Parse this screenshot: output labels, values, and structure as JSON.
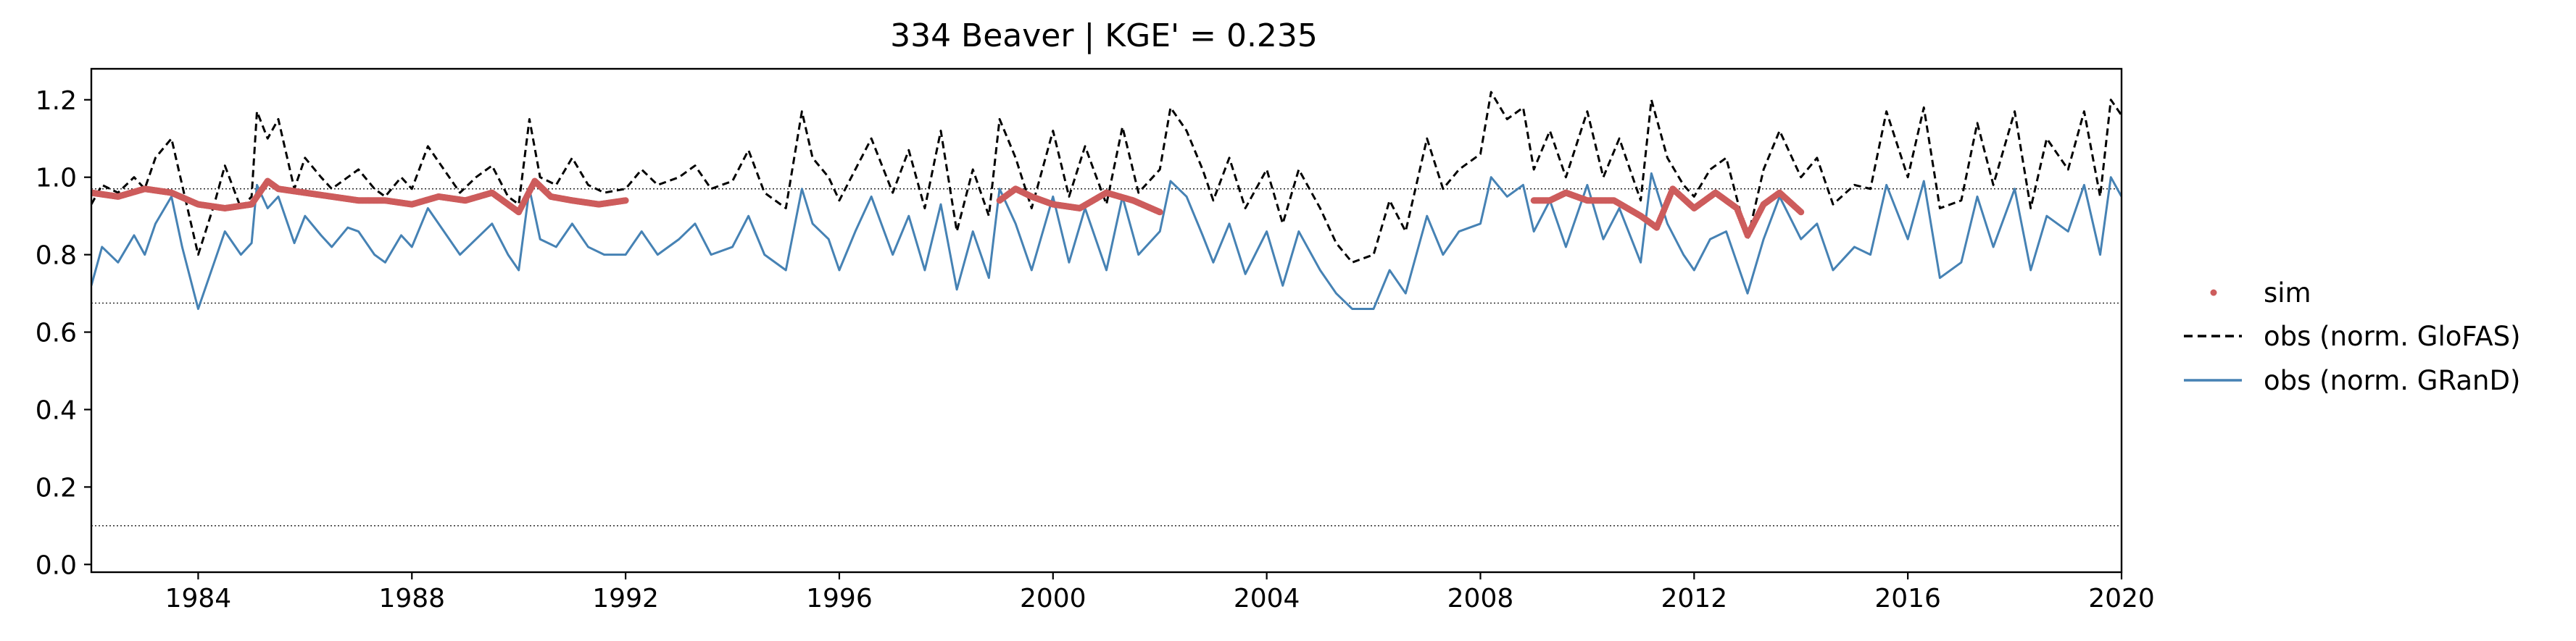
{
  "chart_data": {
    "type": "line",
    "title": "334  Beaver | KGE' = 0.235",
    "xlabel": "",
    "ylabel": "",
    "xlim": [
      1982.0,
      2020.0
    ],
    "ylim": [
      -0.02,
      1.28
    ],
    "x_ticks": [
      1984,
      1988,
      1992,
      1996,
      2000,
      2004,
      2008,
      2012,
      2016,
      2020
    ],
    "x_tick_labels": [
      "1984",
      "1988",
      "1992",
      "1996",
      "2000",
      "2004",
      "2008",
      "2012",
      "2016",
      "2020"
    ],
    "y_ticks": [
      0.0,
      0.2,
      0.4,
      0.6,
      0.8,
      1.0,
      1.2
    ],
    "y_tick_labels": [
      "0.0",
      "0.2",
      "0.4",
      "0.6",
      "0.8",
      "1.0",
      "1.2"
    ],
    "reference_lines": [
      0.97,
      0.675,
      0.1
    ],
    "grid": false,
    "legend_position": "right, outside plot",
    "legend": [
      {
        "label": "sim",
        "style": "dot",
        "color": "#cd5c5c"
      },
      {
        "label": "obs (norm. GloFAS)",
        "style": "dashed",
        "color": "#000000"
      },
      {
        "label": "obs (norm. GRanD)",
        "style": "solid",
        "color": "#4682b4"
      }
    ],
    "series": [
      {
        "name": "obs (norm. GloFAS)",
        "color": "#000000",
        "style": "dashed",
        "x": [
          1982.0,
          1982.2,
          1982.5,
          1982.8,
          1983.0,
          1983.2,
          1983.5,
          1983.7,
          1984.0,
          1984.3,
          1984.5,
          1984.8,
          1985.0,
          1985.1,
          1985.3,
          1985.5,
          1985.8,
          1986.0,
          1986.3,
          1986.5,
          1986.8,
          1987.0,
          1987.3,
          1987.5,
          1987.8,
          1988.0,
          1988.3,
          1988.6,
          1988.9,
          1989.2,
          1989.5,
          1989.8,
          1990.0,
          1990.2,
          1990.4,
          1990.7,
          1991.0,
          1991.3,
          1991.6,
          1992.0,
          1992.3,
          1992.6,
          1993.0,
          1993.3,
          1993.6,
          1994.0,
          1994.3,
          1994.6,
          1995.0,
          1995.3,
          1995.5,
          1995.8,
          1996.0,
          1996.3,
          1996.6,
          1997.0,
          1997.3,
          1997.6,
          1997.9,
          1998.2,
          1998.5,
          1998.8,
          1999.0,
          1999.3,
          1999.6,
          2000.0,
          2000.3,
          2000.6,
          2001.0,
          2001.3,
          2001.6,
          2002.0,
          2002.2,
          2002.5,
          2002.8,
          2003.0,
          2003.3,
          2003.6,
          2004.0,
          2004.3,
          2004.6,
          2005.0,
          2005.3,
          2005.6,
          2006.0,
          2006.3,
          2006.6,
          2007.0,
          2007.3,
          2007.6,
          2008.0,
          2008.2,
          2008.5,
          2008.8,
          2009.0,
          2009.3,
          2009.6,
          2010.0,
          2010.3,
          2010.6,
          2011.0,
          2011.2,
          2011.5,
          2011.8,
          2012.0,
          2012.3,
          2012.6,
          2013.0,
          2013.3,
          2013.6,
          2014.0,
          2014.3,
          2014.6,
          2015.0,
          2015.3,
          2015.6,
          2016.0,
          2016.3,
          2016.6,
          2017.0,
          2017.3,
          2017.6,
          2018.0,
          2018.3,
          2018.6,
          2019.0,
          2019.3,
          2019.6,
          2019.8,
          2020.0
        ],
        "values": [
          0.93,
          0.98,
          0.96,
          1.0,
          0.97,
          1.05,
          1.1,
          0.98,
          0.8,
          0.93,
          1.03,
          0.92,
          0.95,
          1.17,
          1.1,
          1.15,
          0.97,
          1.05,
          1.0,
          0.97,
          1.0,
          1.02,
          0.97,
          0.95,
          1.0,
          0.97,
          1.08,
          1.02,
          0.96,
          1.0,
          1.03,
          0.95,
          0.93,
          1.15,
          1.0,
          0.98,
          1.05,
          0.98,
          0.96,
          0.97,
          1.02,
          0.98,
          1.0,
          1.03,
          0.97,
          0.99,
          1.07,
          0.96,
          0.92,
          1.17,
          1.05,
          1.0,
          0.94,
          1.02,
          1.1,
          0.96,
          1.07,
          0.92,
          1.12,
          0.86,
          1.02,
          0.9,
          1.15,
          1.05,
          0.92,
          1.12,
          0.95,
          1.08,
          0.93,
          1.13,
          0.96,
          1.02,
          1.18,
          1.12,
          1.02,
          0.94,
          1.05,
          0.92,
          1.02,
          0.88,
          1.02,
          0.92,
          0.83,
          0.78,
          0.8,
          0.94,
          0.86,
          1.1,
          0.97,
          1.02,
          1.06,
          1.22,
          1.15,
          1.18,
          1.02,
          1.12,
          1.0,
          1.17,
          1.0,
          1.1,
          0.94,
          1.2,
          1.05,
          0.98,
          0.95,
          1.02,
          1.05,
          0.84,
          1.02,
          1.12,
          1.0,
          1.05,
          0.93,
          0.98,
          0.97,
          1.17,
          1.0,
          1.18,
          0.92,
          0.94,
          1.14,
          0.98,
          1.17,
          0.92,
          1.1,
          1.02,
          1.17,
          0.95,
          1.2,
          1.16
        ]
      },
      {
        "name": "obs (norm. GRanD)",
        "color": "#4682b4",
        "style": "solid",
        "x": [
          1982.0,
          1982.2,
          1982.5,
          1982.8,
          1983.0,
          1983.2,
          1983.5,
          1983.7,
          1984.0,
          1984.3,
          1984.5,
          1984.8,
          1985.0,
          1985.1,
          1985.3,
          1985.5,
          1985.8,
          1986.0,
          1986.3,
          1986.5,
          1986.8,
          1987.0,
          1987.3,
          1987.5,
          1987.8,
          1988.0,
          1988.3,
          1988.6,
          1988.9,
          1989.2,
          1989.5,
          1989.8,
          1990.0,
          1990.2,
          1990.4,
          1990.7,
          1991.0,
          1991.3,
          1991.6,
          1992.0,
          1992.3,
          1992.6,
          1993.0,
          1993.3,
          1993.6,
          1994.0,
          1994.3,
          1994.6,
          1995.0,
          1995.3,
          1995.5,
          1995.8,
          1996.0,
          1996.3,
          1996.6,
          1997.0,
          1997.3,
          1997.6,
          1997.9,
          1998.2,
          1998.5,
          1998.8,
          1999.0,
          1999.3,
          1999.6,
          2000.0,
          2000.3,
          2000.6,
          2001.0,
          2001.3,
          2001.6,
          2002.0,
          2002.2,
          2002.5,
          2002.8,
          2003.0,
          2003.3,
          2003.6,
          2004.0,
          2004.3,
          2004.6,
          2005.0,
          2005.3,
          2005.6,
          2006.0,
          2006.3,
          2006.6,
          2007.0,
          2007.3,
          2007.6,
          2008.0,
          2008.2,
          2008.5,
          2008.8,
          2009.0,
          2009.3,
          2009.6,
          2010.0,
          2010.3,
          2010.6,
          2011.0,
          2011.2,
          2011.5,
          2011.8,
          2012.0,
          2012.3,
          2012.6,
          2013.0,
          2013.3,
          2013.6,
          2014.0,
          2014.3,
          2014.6,
          2015.0,
          2015.3,
          2015.6,
          2016.0,
          2016.3,
          2016.6,
          2017.0,
          2017.3,
          2017.6,
          2018.0,
          2018.3,
          2018.6,
          2019.0,
          2019.3,
          2019.6,
          2019.8,
          2020.0
        ],
        "values": [
          0.72,
          0.82,
          0.78,
          0.85,
          0.8,
          0.88,
          0.95,
          0.82,
          0.66,
          0.78,
          0.86,
          0.8,
          0.83,
          0.98,
          0.92,
          0.95,
          0.83,
          0.9,
          0.85,
          0.82,
          0.87,
          0.86,
          0.8,
          0.78,
          0.85,
          0.82,
          0.92,
          0.86,
          0.8,
          0.84,
          0.88,
          0.8,
          0.76,
          0.97,
          0.84,
          0.82,
          0.88,
          0.82,
          0.8,
          0.8,
          0.86,
          0.8,
          0.84,
          0.88,
          0.8,
          0.82,
          0.9,
          0.8,
          0.76,
          0.97,
          0.88,
          0.84,
          0.76,
          0.86,
          0.95,
          0.8,
          0.9,
          0.76,
          0.93,
          0.71,
          0.86,
          0.74,
          0.97,
          0.88,
          0.76,
          0.95,
          0.78,
          0.92,
          0.76,
          0.95,
          0.8,
          0.86,
          0.99,
          0.95,
          0.85,
          0.78,
          0.88,
          0.75,
          0.86,
          0.72,
          0.86,
          0.76,
          0.7,
          0.66,
          0.66,
          0.76,
          0.7,
          0.9,
          0.8,
          0.86,
          0.88,
          1.0,
          0.95,
          0.98,
          0.86,
          0.94,
          0.82,
          0.98,
          0.84,
          0.92,
          0.78,
          1.01,
          0.88,
          0.8,
          0.76,
          0.84,
          0.86,
          0.7,
          0.84,
          0.95,
          0.84,
          0.88,
          0.76,
          0.82,
          0.8,
          0.98,
          0.84,
          0.99,
          0.74,
          0.78,
          0.95,
          0.82,
          0.97,
          0.76,
          0.9,
          0.86,
          0.98,
          0.8,
          1.0,
          0.95
        ]
      },
      {
        "name": "sim",
        "color": "#cd5c5c",
        "style": "dots",
        "segments": [
          {
            "x": [
              1982.0,
              1982.5,
              1983.0,
              1983.5,
              1984.0,
              1984.5,
              1985.0,
              1985.3,
              1985.5,
              1986.0,
              1986.5,
              1987.0,
              1987.5,
              1988.0,
              1988.5,
              1989.0,
              1989.5,
              1990.0,
              1990.3,
              1990.6,
              1991.0,
              1991.5,
              1992.0
            ],
            "values": [
              0.96,
              0.95,
              0.97,
              0.96,
              0.93,
              0.92,
              0.93,
              0.99,
              0.97,
              0.96,
              0.95,
              0.94,
              0.94,
              0.93,
              0.95,
              0.94,
              0.96,
              0.91,
              0.99,
              0.95,
              0.94,
              0.93,
              0.94
            ]
          },
          {
            "x": [
              1999.0,
              1999.3,
              1999.6,
              2000.0,
              2000.5,
              2001.0,
              2001.5,
              2002.0
            ],
            "values": [
              0.94,
              0.97,
              0.95,
              0.93,
              0.92,
              0.96,
              0.94,
              0.91
            ]
          },
          {
            "x": [
              2009.0,
              2009.3,
              2009.6,
              2010.0,
              2010.5,
              2011.0,
              2011.3,
              2011.6,
              2012.0,
              2012.4,
              2012.8,
              2013.0,
              2013.3,
              2013.6,
              2014.0
            ],
            "values": [
              0.94,
              0.94,
              0.96,
              0.94,
              0.94,
              0.9,
              0.87,
              0.97,
              0.92,
              0.96,
              0.92,
              0.85,
              0.93,
              0.96,
              0.91
            ]
          }
        ]
      }
    ]
  }
}
